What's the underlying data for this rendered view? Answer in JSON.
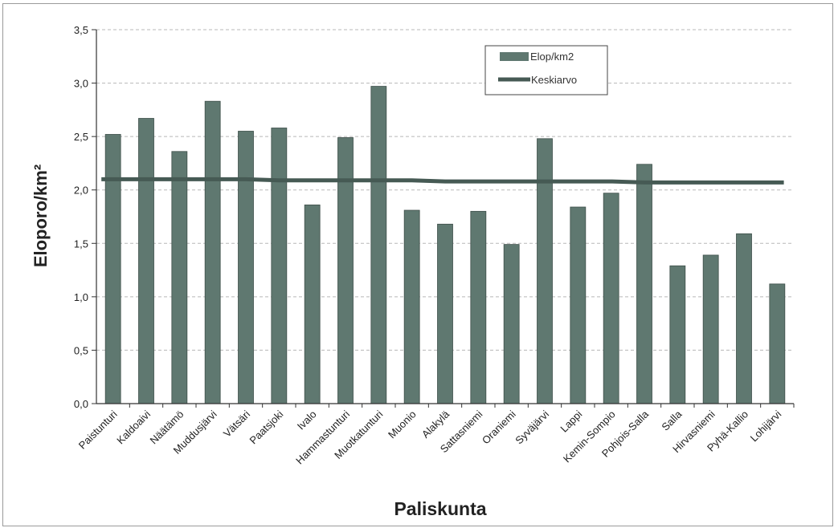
{
  "chart_data": {
    "type": "bar",
    "categories": [
      "Paistunturi",
      "Kaldoaivi",
      "Näätämö",
      "Muddusjärvi",
      "Vätsäri",
      "Paatsjoki",
      "Ivalo",
      "Hammastunturi",
      "Muotkatunturi",
      "Muonio",
      "Alakylä",
      "Sattasniemi",
      "Oraniemi",
      "Syväjärvi",
      "Lappi",
      "Kemin-Sompio",
      "Pohjois-Salla",
      "Salla",
      "Hirvasniemi",
      "Pyhä-Kallio",
      "Lohijärvi"
    ],
    "series": [
      {
        "name": "Elop/km2",
        "type": "bar",
        "values": [
          2.52,
          2.67,
          2.36,
          2.83,
          2.55,
          2.58,
          1.86,
          2.49,
          2.97,
          1.81,
          1.68,
          1.8,
          1.49,
          2.48,
          1.84,
          1.97,
          2.24,
          1.29,
          1.39,
          1.59,
          1.12
        ]
      },
      {
        "name": "Keskiarvo",
        "type": "line",
        "values": [
          2.1,
          2.1,
          2.1,
          2.1,
          2.1,
          2.09,
          2.09,
          2.09,
          2.09,
          2.09,
          2.08,
          2.08,
          2.08,
          2.08,
          2.08,
          2.08,
          2.07,
          2.07,
          2.07,
          2.07,
          2.07
        ]
      }
    ],
    "xlabel": "Paliskunta",
    "ylabel": "Eloporo/km²",
    "ylim": [
      0,
      3.5
    ],
    "yticks": [
      "0,0",
      "0,5",
      "1,0",
      "1,5",
      "2,0",
      "2,5",
      "3,0",
      "3,5"
    ],
    "grid": true,
    "legend_position": "top-right",
    "colors": {
      "bar": "#5f7870",
      "line": "#465a54"
    }
  }
}
